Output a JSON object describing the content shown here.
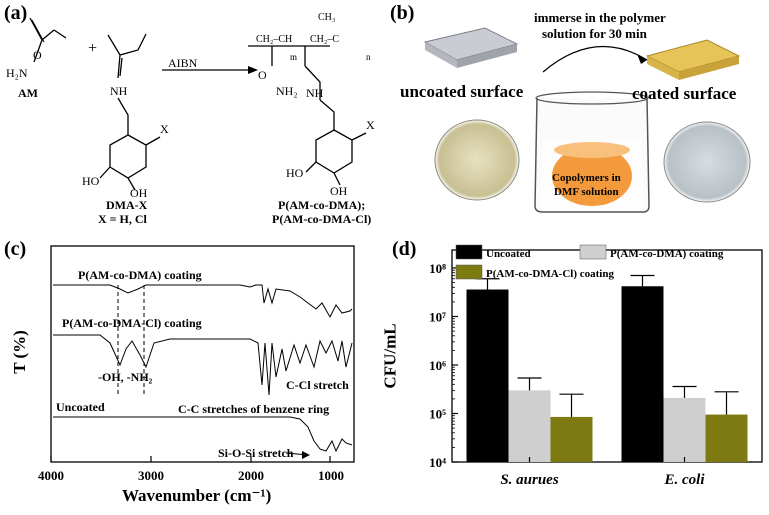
{
  "panel_a": {
    "label": "(a)",
    "am": "AM",
    "plus": "+",
    "catalyst": "AIBN",
    "dma": "DMA-X",
    "x_def": "X = H, Cl",
    "product_1": "P(AM-co-DMA);",
    "product_2": "P(AM-co-DMA-Cl)",
    "atoms": {
      "x": "X",
      "ho": "HO",
      "oh": "OH",
      "nh": "NH",
      "h2n": "H₂N",
      "o": "O",
      "nh2": "NH₂",
      "m": "m",
      "n": "n",
      "ch2ch": "CH₂–CH",
      "ch2c": "CH₂–C",
      "ch3": "CH₃"
    }
  },
  "panel_b": {
    "label": "(b)",
    "step_1": "immerse in the polymer",
    "step_2": "solution for 30 min",
    "uncoated": "uncoated surface",
    "coated": "coated surface",
    "beaker_1": "Copolymers in",
    "beaker_2": "DMF solution",
    "colors": {
      "uncoated_slide": "#c9ccd2",
      "coated_slide": "#e8c458",
      "solution": "#f39a3d"
    }
  },
  "panel_c": {
    "label": "(c)",
    "ylabel": "T (%)",
    "xlabel": "Wavenumber (cm⁻¹)",
    "xticks": [
      "4000",
      "3000",
      "2000",
      "1000"
    ],
    "trace_1": "P(AM-co-DMA) coating",
    "trace_2": "P(AM-co-DMA-Cl) coating",
    "trace_3": "Uncoated",
    "ann_oh": "-OH, -NH₂",
    "ann_ccl": "C-Cl stretch",
    "ann_cc": "C-C stretches of benzene ring",
    "ann_sio": "Si-O-Si  stretch"
  },
  "panel_d": {
    "label": "(d)",
    "chart_data": {
      "type": "bar",
      "ylabel": "CFU/mL",
      "yscale": "log",
      "ylim": [
        10000,
        100000000
      ],
      "yticks": [
        "10⁴",
        "10⁵",
        "10⁶",
        "10⁷",
        "10⁸"
      ],
      "legend_position": "top",
      "categories": [
        "S. aurues",
        "E. coli"
      ],
      "series": [
        {
          "name": "Uncoated",
          "color": "#000000",
          "values": [
            36000000,
            42000000
          ],
          "err_upper": [
            60000000,
            70000000
          ]
        },
        {
          "name": "P(AM-co-DMA) coating",
          "color": "#cfcfcf",
          "values": [
            300000,
            210000
          ],
          "err_upper": [
            540000,
            360000
          ]
        },
        {
          "name": "P(AM-co-DMA-Cl) coating",
          "color": "#7d7a12",
          "values": [
            85000,
            95000
          ],
          "err_upper": [
            250000,
            280000
          ]
        }
      ]
    }
  }
}
